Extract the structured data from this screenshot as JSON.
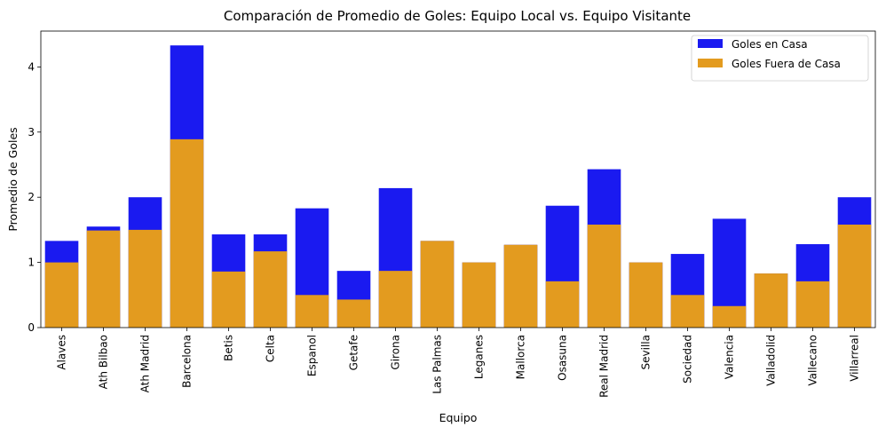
{
  "chart_data": {
    "type": "bar",
    "title": "Comparación de Promedio de Goles: Equipo Local vs. Equipo Visitante",
    "xlabel": "Equipo",
    "ylabel": "Promedio de Goles",
    "ylim": [
      0,
      4.55
    ],
    "yticks": [
      "0",
      "1",
      "2",
      "3",
      "4"
    ],
    "legend_position": "top-right",
    "grid": false,
    "categories": [
      "Alaves",
      "Ath Bilbao",
      "Ath Madrid",
      "Barcelona",
      "Betis",
      "Celta",
      "Espanol",
      "Getafe",
      "Girona",
      "Las Palmas",
      "Leganes",
      "Mallorca",
      "Osasuna",
      "Real Madrid",
      "Sevilla",
      "Sociedad",
      "Valencia",
      "Valladolid",
      "Vallecano",
      "Villarreal"
    ],
    "series": [
      {
        "name": "Goles en Casa",
        "color": "#1a1af0",
        "values": [
          1.33,
          1.55,
          2.0,
          4.33,
          1.43,
          1.43,
          1.83,
          0.87,
          2.14,
          1.33,
          1.0,
          1.27,
          1.87,
          2.43,
          1.0,
          1.13,
          1.67,
          0.83,
          1.28,
          2.0
        ]
      },
      {
        "name": "Goles Fuera de Casa",
        "color": "#e39b1f",
        "values": [
          1.0,
          1.49,
          1.5,
          2.89,
          0.86,
          1.17,
          0.5,
          0.43,
          0.87,
          1.33,
          1.0,
          1.27,
          0.71,
          1.58,
          1.0,
          0.5,
          0.33,
          0.83,
          0.71,
          1.58
        ]
      }
    ]
  }
}
